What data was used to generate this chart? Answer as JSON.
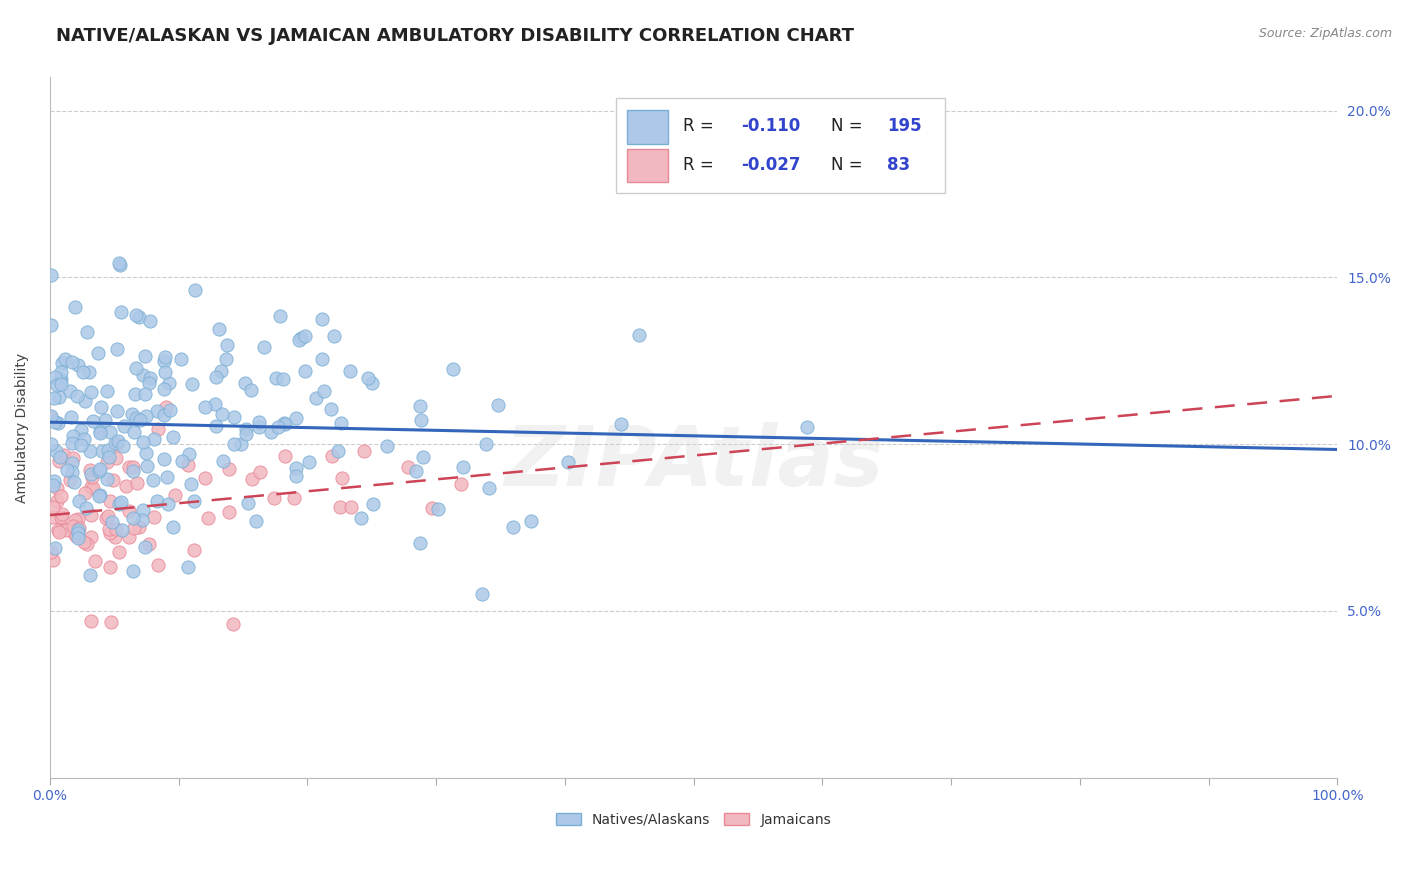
{
  "title": "NATIVE/ALASKAN VS JAMAICAN AMBULATORY DISABILITY CORRELATION CHART",
  "source": "Source: ZipAtlas.com",
  "ylabel": "Ambulatory Disability",
  "xlim": [
    0,
    100
  ],
  "ylim": [
    0,
    21
  ],
  "blue_scatter_color": "#adc8e8",
  "blue_edge_color": "#7aafd4",
  "pink_scatter_color": "#f2b8c0",
  "pink_edge_color": "#e88898",
  "blue_line_color": "#3366bb",
  "pink_line_color": "#cc4455",
  "legend_blue_r_val": "-0.110",
  "legend_blue_n_val": "195",
  "legend_pink_r_val": "-0.027",
  "legend_pink_n_val": "83",
  "legend_label_blue": "Natives/Alaskans",
  "legend_label_pink": "Jamaicans",
  "grid_color": "#cccccc",
  "background_color": "#ffffff",
  "blue_R": -0.11,
  "blue_N": 195,
  "pink_R": -0.027,
  "pink_N": 83,
  "watermark": "ZIPAtlas",
  "title_fontsize": 13,
  "axis_label_fontsize": 10,
  "tick_fontsize": 10,
  "tick_color": "#4466cc",
  "title_color": "#222222",
  "source_color": "#888888"
}
